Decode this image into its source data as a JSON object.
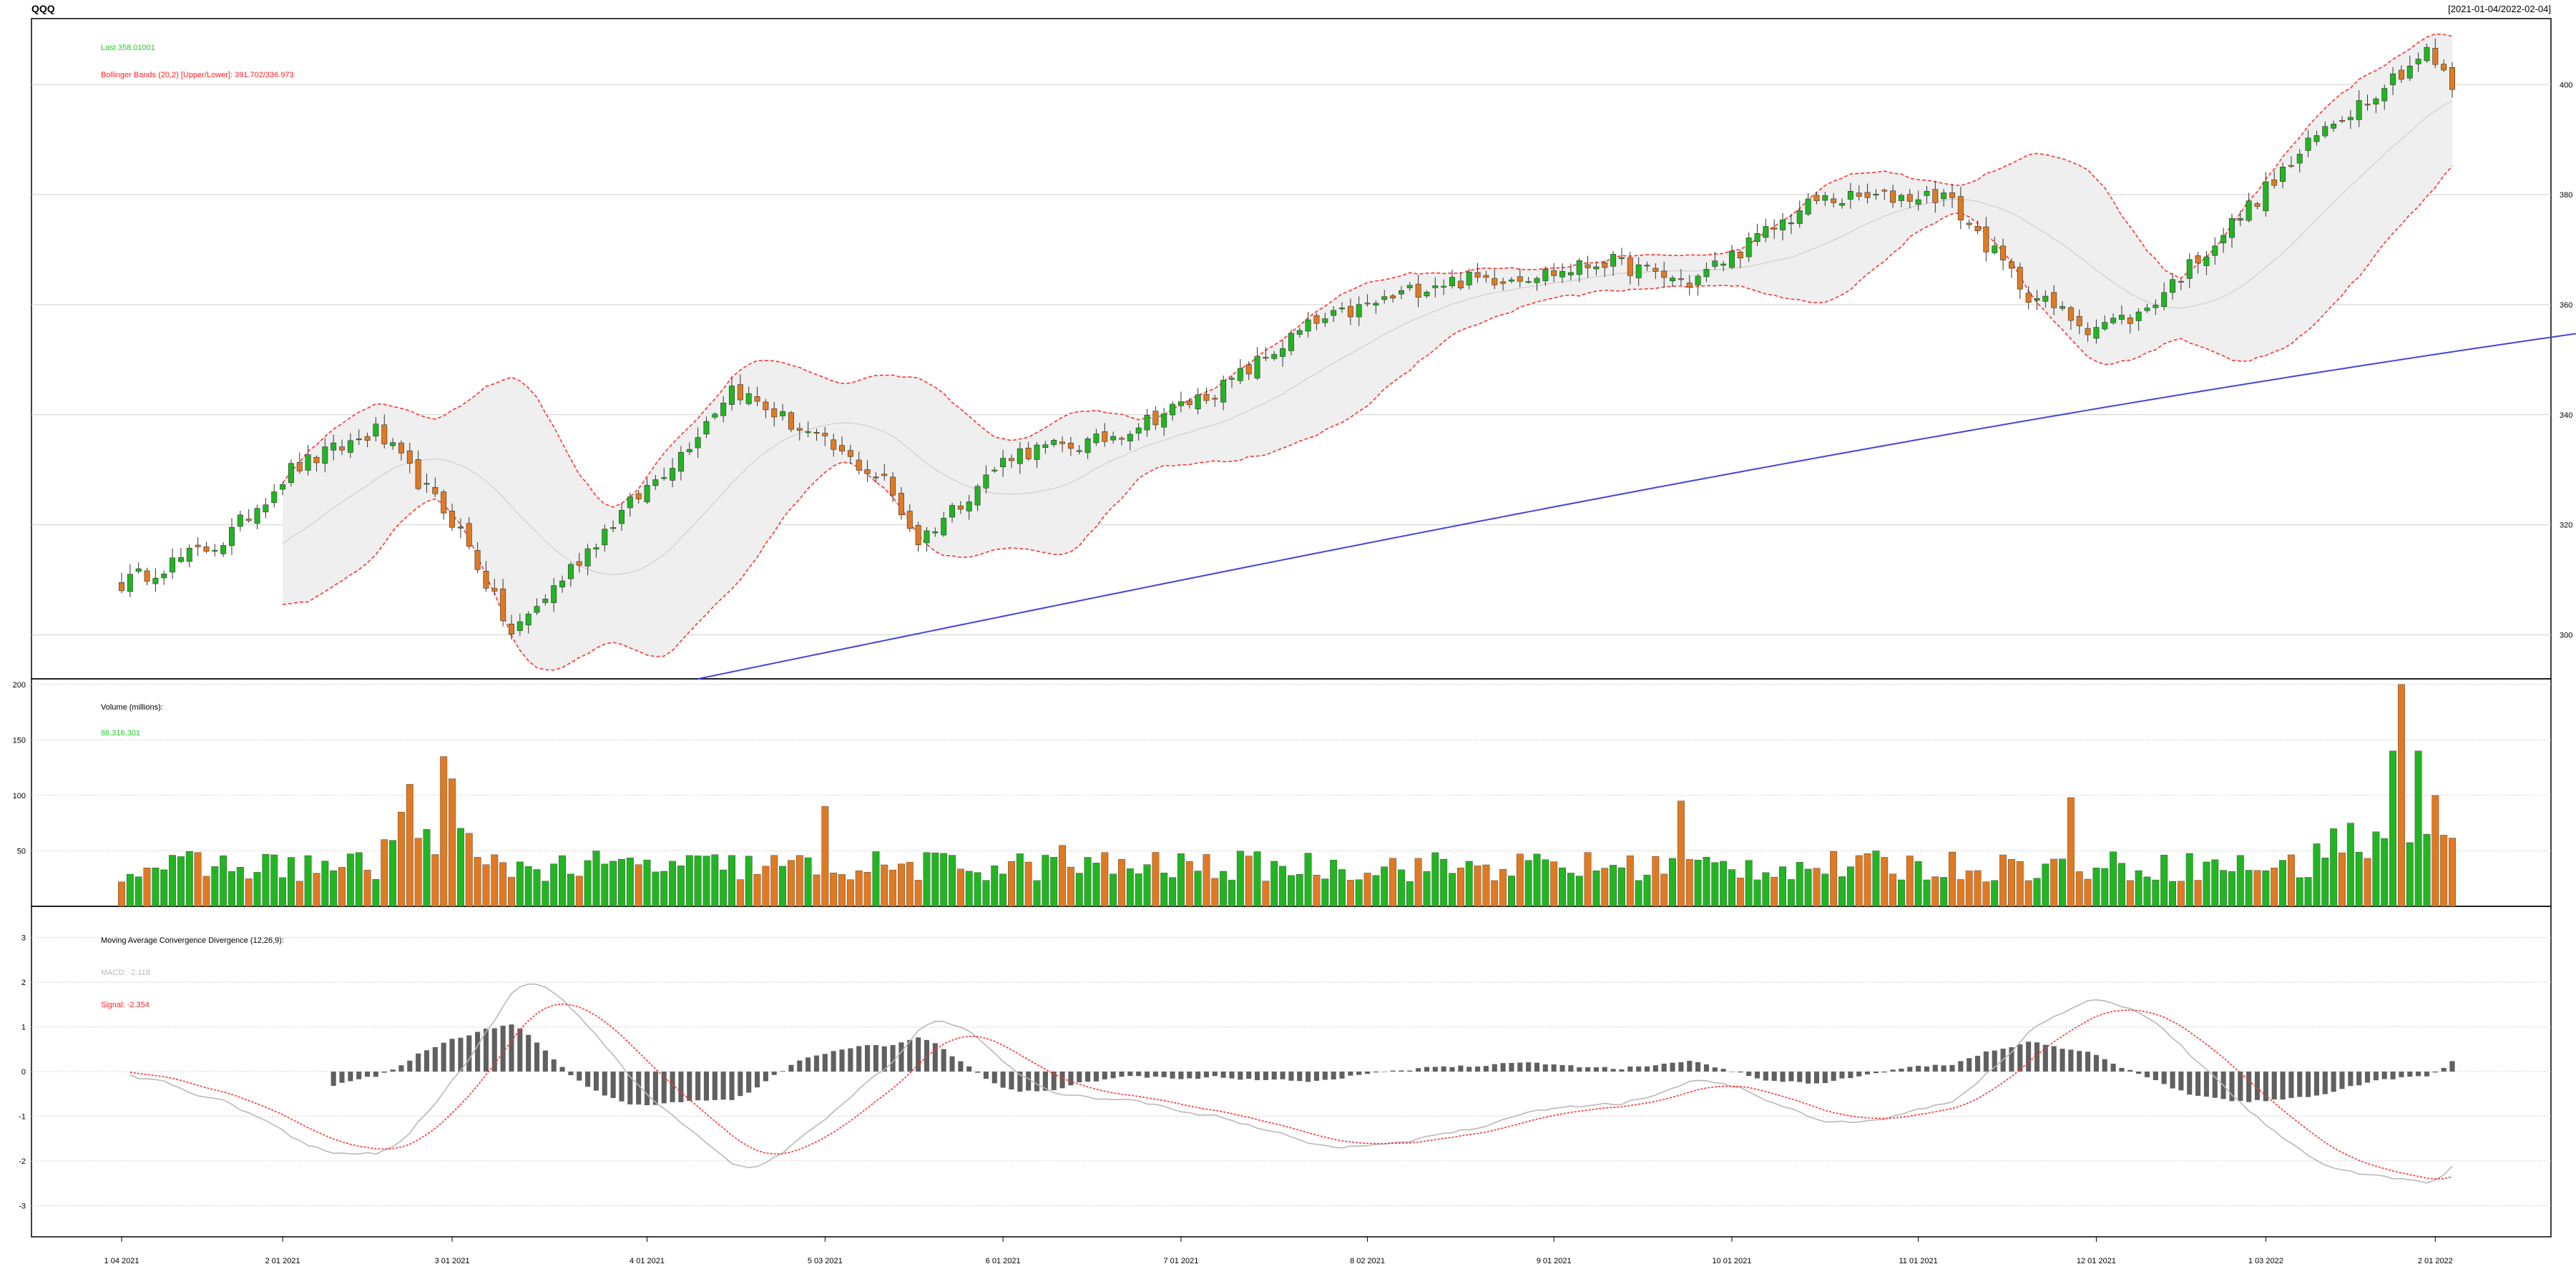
{
  "header": {
    "symbol": "QQQ",
    "date_range": "[2021-01-04/2022-02-04]"
  },
  "colors": {
    "up": "#22b522",
    "down": "#e07a22",
    "band": "#ff3333",
    "band_fill": "#efefef",
    "sma200": "#4444dd",
    "macd_line": "#b8b8b8",
    "signal_line": "#ff3333",
    "histogram": "#606060",
    "grid": "#cfcfcf",
    "legend_green": "#22cc22",
    "legend_red": "#ff2222"
  },
  "chart_data": [
    {
      "type": "candlestick",
      "panel": "price",
      "legend": {
        "last": "Last 358.01001",
        "bbands": "Bollinger Bands (20,2) [Upper/Lower]: 391.702/336.973"
      },
      "ylim": [
        292,
        412
      ],
      "yticks": [
        300,
        320,
        340,
        360,
        380,
        400
      ],
      "ytick_labels": [
        "300",
        "320",
        "340",
        "360",
        "380",
        "400"
      ],
      "start_close": 309.3,
      "anchors": [
        [
          0,
          309.3
        ],
        [
          12,
          317
        ],
        [
          20,
          330
        ],
        [
          30,
          337
        ],
        [
          40,
          319
        ],
        [
          46,
          300
        ],
        [
          57,
          319
        ],
        [
          66,
          333
        ],
        [
          72,
          345
        ],
        [
          90,
          328
        ],
        [
          94,
          317
        ],
        [
          105,
          333
        ],
        [
          115,
          335
        ],
        [
          130,
          345
        ],
        [
          140,
          356
        ],
        [
          155,
          364
        ],
        [
          170,
          366
        ],
        [
          175,
          368
        ],
        [
          185,
          364
        ],
        [
          200,
          379
        ],
        [
          215,
          380
        ],
        [
          225,
          362
        ],
        [
          232,
          356
        ],
        [
          238,
          358
        ],
        [
          248,
          373
        ],
        [
          260,
          392
        ],
        [
          272,
          406
        ],
        [
          282,
          384
        ],
        [
          290,
          392
        ],
        [
          300,
          384
        ],
        [
          305,
          389
        ],
        [
          315,
          402
        ],
        [
          320,
          388
        ],
        [
          327,
          381
        ],
        [
          336,
          358
        ],
        [
          342,
          343
        ],
        [
          347,
          353
        ],
        [
          351,
          368
        ],
        [
          355,
          358
        ]
      ],
      "bband_upper_final": 391.702,
      "bband_lower_final": 336.973,
      "sma200_range": [
        [
          68,
          292
        ],
        [
          352,
          367
        ]
      ],
      "x_tick_labels": [
        "1 04 2021",
        "2 01 2021",
        "3 01 2021",
        "4 01 2021",
        "5 03 2021",
        "6 01 2021",
        "7 01 2021",
        "8 02 2021",
        "9 01 2021",
        "10 01 2021",
        "11 01 2021",
        "12 01 2021",
        "1 03 2022",
        "2 01 2022"
      ],
      "x_tick_bars": [
        0,
        19,
        39,
        62,
        83,
        104,
        125,
        147,
        169,
        190,
        212,
        233,
        253,
        273
      ],
      "bar_count": 276
    },
    {
      "type": "bar",
      "panel": "volume",
      "legend": {
        "title": "Volume (millions):",
        "last": "86,316,301"
      },
      "ylim": [
        0,
        205
      ],
      "yticks": [
        50,
        100,
        150,
        200
      ],
      "ytick_labels": [
        "50",
        "100",
        "150",
        "200"
      ],
      "base_volume": 40,
      "spikes": [
        [
          33,
          85
        ],
        [
          34,
          110
        ],
        [
          38,
          135
        ],
        [
          39,
          115
        ],
        [
          83,
          90
        ],
        [
          111,
          55
        ],
        [
          184,
          95
        ],
        [
          230,
          98
        ],
        [
          261,
          70
        ],
        [
          263,
          75
        ],
        [
          269,
          200
        ],
        [
          268,
          140
        ],
        [
          271,
          140
        ],
        [
          273,
          100
        ]
      ]
    },
    {
      "type": "line+histogram",
      "panel": "macd",
      "legend": {
        "title": "Moving Average Convergence Divergence (12,26,9):",
        "macd": "MACD: -2.118",
        "signal": "Signal: -2.354"
      },
      "ylim": [
        -3.7,
        3.7
      ],
      "yticks": [
        -3,
        -2,
        -1,
        0,
        1,
        2,
        3
      ],
      "ytick_labels": [
        "-3",
        "-2",
        "-1",
        "0",
        "1",
        "2",
        "3"
      ],
      "macd_last": -2.118,
      "signal_last": -2.354
    }
  ]
}
